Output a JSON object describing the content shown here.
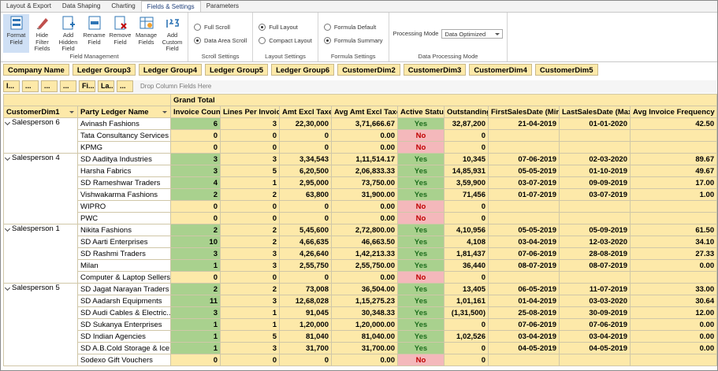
{
  "ribbon": {
    "tabs": [
      {
        "label": "Layout & Export",
        "active": false
      },
      {
        "label": "Data Shaping",
        "active": false
      },
      {
        "label": "Charting",
        "active": false
      },
      {
        "label": "Fields & Settings",
        "active": true
      },
      {
        "label": "Parameters",
        "active": false
      }
    ],
    "groups": [
      {
        "label": "Field Management",
        "buttons": [
          "Format Field",
          "Hide Filter Fields",
          "Add Hidden Field",
          "Rename Field",
          "Remove Field",
          "Manage Fields",
          "Add Custom Field"
        ]
      },
      {
        "label": "Scroll Settings",
        "radios": [
          {
            "label": "Full Scroll",
            "selected": false
          },
          {
            "label": "Data Area Scroll",
            "selected": true
          }
        ]
      },
      {
        "label": "Layout Settings",
        "radios": [
          {
            "label": "Full Layout",
            "selected": true
          },
          {
            "label": "Compact Layout",
            "selected": false
          }
        ]
      },
      {
        "label": "Formula Settings",
        "radios": [
          {
            "label": "Formula Default",
            "selected": false
          },
          {
            "label": "Formula Summary",
            "selected": true
          }
        ]
      },
      {
        "label": "Data Processing Mode",
        "field": {
          "label": "Processing Mode",
          "value": "Data Optimized"
        }
      }
    ]
  },
  "pivot": {
    "filter_fields": [
      "Company Name",
      "Ledger Group3",
      "Ledger Group4",
      "Ledger Group5",
      "Ledger Group6",
      "CustomerDim2",
      "CustomerDim3",
      "CustomerDim4",
      "CustomerDim5"
    ],
    "column_area": {
      "fields": [
        "I...",
        "...",
        "...",
        "...",
        "Fi...",
        "La...",
        "..."
      ],
      "placeholder": "Drop Column Fields Here"
    },
    "grand_total": "Grand Total",
    "row_headers": [
      "CustomerDim1",
      "Party Ledger Name"
    ],
    "columns": [
      "Invoice Count",
      "Lines Per Invoice",
      "Amt Excl Taxes",
      "Avg Amt Excl Taxes",
      "Active Status",
      "Outstanding",
      "FirstSalesDate (Min)",
      "LastSalesDate (Max)",
      "Avg Invoice Frequency"
    ],
    "groups": [
      {
        "name": "Salesperson 6",
        "rows": [
          {
            "party": "Avinash Fashions",
            "cells": [
              "6",
              "3",
              "22,30,000",
              "3,71,666.67",
              "Yes",
              "32,87,200",
              "21-04-2019",
              "01-01-2020",
              "42.50"
            ]
          },
          {
            "party": "Tata Consultancy Services",
            "cells": [
              "0",
              "0",
              "0",
              "0.00",
              "No",
              "0",
              null,
              null,
              null
            ]
          },
          {
            "party": "KPMG",
            "cells": [
              "0",
              "0",
              "0",
              "0.00",
              "No",
              "0",
              null,
              null,
              null
            ]
          }
        ]
      },
      {
        "name": "Salesperson 4",
        "rows": [
          {
            "party": "SD Aaditya Industries",
            "cells": [
              "3",
              "3",
              "3,34,543",
              "1,11,514.17",
              "Yes",
              "10,345",
              "07-06-2019",
              "02-03-2020",
              "89.67"
            ]
          },
          {
            "party": "Harsha Fabrics",
            "cells": [
              "3",
              "5",
              "6,20,500",
              "2,06,833.33",
              "Yes",
              "14,85,931",
              "05-05-2019",
              "01-10-2019",
              "49.67"
            ]
          },
          {
            "party": "SD Rameshwar Traders",
            "cells": [
              "4",
              "1",
              "2,95,000",
              "73,750.00",
              "Yes",
              "3,59,900",
              "03-07-2019",
              "09-09-2019",
              "17.00"
            ]
          },
          {
            "party": "Vishwakarma Fashions",
            "cells": [
              "2",
              "2",
              "63,800",
              "31,900.00",
              "Yes",
              "71,456",
              "01-07-2019",
              "03-07-2019",
              "1.00"
            ]
          },
          {
            "party": "WIPRO",
            "cells": [
              "0",
              "0",
              "0",
              "0.00",
              "No",
              "0",
              null,
              null,
              null
            ]
          },
          {
            "party": "PWC",
            "cells": [
              "0",
              "0",
              "0",
              "0.00",
              "No",
              "0",
              null,
              null,
              null
            ]
          }
        ]
      },
      {
        "name": "Salesperson 1",
        "rows": [
          {
            "party": "Nikita Fashions",
            "cells": [
              "2",
              "2",
              "5,45,600",
              "2,72,800.00",
              "Yes",
              "4,10,956",
              "05-05-2019",
              "05-09-2019",
              "61.50"
            ]
          },
          {
            "party": "SD Aarti Enterprises",
            "cells": [
              "10",
              "2",
              "4,66,635",
              "46,663.50",
              "Yes",
              "4,108",
              "03-04-2019",
              "12-03-2020",
              "34.10"
            ]
          },
          {
            "party": "SD Rashmi Traders",
            "cells": [
              "3",
              "3",
              "4,26,640",
              "1,42,213.33",
              "Yes",
              "1,81,437",
              "07-06-2019",
              "28-08-2019",
              "27.33"
            ]
          },
          {
            "party": "Milan",
            "cells": [
              "1",
              "3",
              "2,55,750",
              "2,55,750.00",
              "Yes",
              "36,440",
              "08-07-2019",
              "08-07-2019",
              "0.00"
            ]
          },
          {
            "party": "Computer & Laptop Sellers",
            "cells": [
              "0",
              "0",
              "0",
              "0.00",
              "No",
              "0",
              null,
              null,
              null
            ]
          }
        ]
      },
      {
        "name": "Salesperson 5",
        "rows": [
          {
            "party": "SD Jagat Narayan Traders",
            "cells": [
              "2",
              "2",
              "73,008",
              "36,504.00",
              "Yes",
              "13,405",
              "06-05-2019",
              "11-07-2019",
              "33.00"
            ]
          },
          {
            "party": "SD Aadarsh Equipments",
            "cells": [
              "11",
              "3",
              "12,68,028",
              "1,15,275.23",
              "Yes",
              "1,01,161",
              "01-04-2019",
              "03-03-2020",
              "30.64"
            ]
          },
          {
            "party": "SD Audi Cables & Electric...",
            "cells": [
              "3",
              "1",
              "91,045",
              "30,348.33",
              "Yes",
              "(1,31,500)",
              "25-08-2019",
              "30-09-2019",
              "12.00"
            ]
          },
          {
            "party": "SD Sukanya Enterprises",
            "cells": [
              "1",
              "1",
              "1,20,000",
              "1,20,000.00",
              "Yes",
              "0",
              "07-06-2019",
              "07-06-2019",
              "0.00"
            ]
          },
          {
            "party": "SD Indian Agencies",
            "cells": [
              "1",
              "5",
              "81,040",
              "81,040.00",
              "Yes",
              "1,02,526",
              "03-04-2019",
              "03-04-2019",
              "0.00"
            ]
          },
          {
            "party": "SD A.B.Cold Storage & Ice...",
            "cells": [
              "1",
              "3",
              "31,700",
              "31,700.00",
              "Yes",
              "0",
              "04-05-2019",
              "04-05-2019",
              "0.00"
            ]
          },
          {
            "party": "Sodexo Gift Vouchers",
            "cells": [
              "0",
              "0",
              "0",
              "0.00",
              "No",
              "0",
              null,
              null,
              null
            ]
          }
        ]
      }
    ]
  }
}
